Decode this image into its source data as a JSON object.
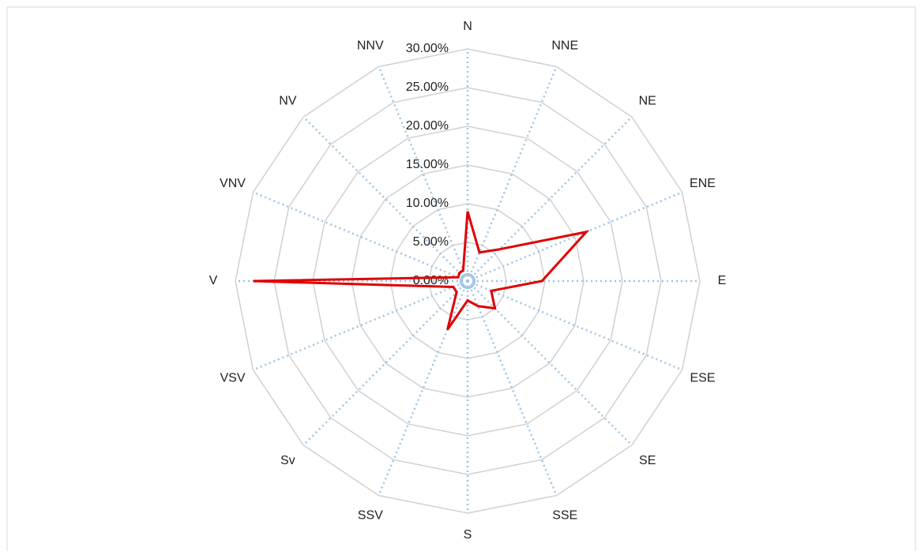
{
  "chart_data": {
    "type": "radar",
    "categories": [
      "N",
      "NNE",
      "NE",
      "ENE",
      "E",
      "ESE",
      "SE",
      "SSE",
      "S",
      "SSV",
      "Sv",
      "VSV",
      "V",
      "VNV",
      "NV",
      "NNV"
    ],
    "series": [
      {
        "color": "#e00000",
        "values": [
          9,
          4,
          5.8,
          16.6,
          9.6,
          3.3,
          5,
          3.5,
          2.5,
          6.8,
          2,
          2,
          27.7,
          1.3,
          1.5,
          1.5
        ]
      }
    ],
    "ylim": [
      0,
      30
    ],
    "yticks": [
      {
        "value": 0,
        "label": "0.00%"
      },
      {
        "value": 5,
        "label": "5.00%"
      },
      {
        "value": 10,
        "label": "10.00%"
      },
      {
        "value": 15,
        "label": "15.00%"
      },
      {
        "value": 20,
        "label": "20.00%"
      },
      {
        "value": 25,
        "label": "25.00%"
      },
      {
        "value": 30,
        "label": "30.00%"
      }
    ],
    "grid": true
  }
}
